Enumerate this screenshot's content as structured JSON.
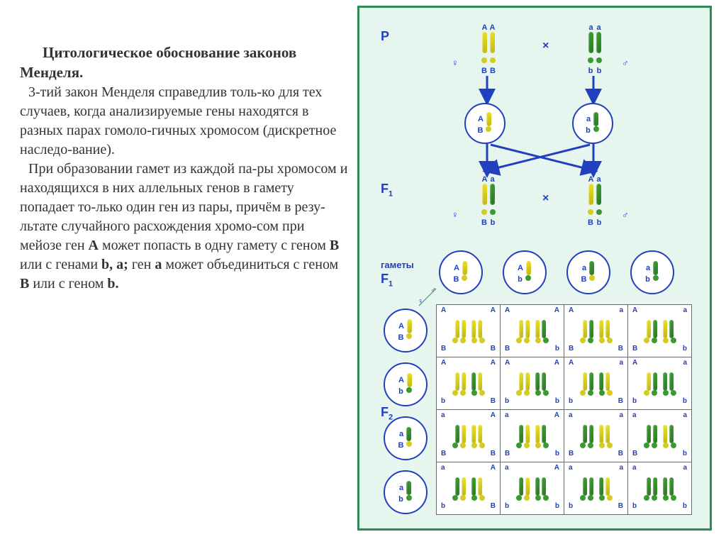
{
  "title": "Цитологическое обоснование законов  Менделя.",
  "para1": "3-тий закон Менделя справедлив толь-ко для тех случаев, когда анализируемые гены находятся в разных парах гомоло-гичных хромосом (дискретное наследо-вание).",
  "para2_a": "При образовании гамет из каждой па-ры хромосом и находящихся   в них аллельных генов в гамету попадает то-лько один ген из пары,  причём в резу-льтате случайного расхождения хромо-сом при мейозе ген ",
  "para2_b": " может попасть в одну гамету с геном ",
  "para2_c": "  или с генами  ",
  "para2_d": "   ген ",
  "para2_e": " может объединиться с геном ",
  "para2_f": " или с геном ",
  "geneA": "A",
  "geneB": "B",
  "geneb": "b,",
  "genea": "a;",
  "genea2": "a",
  "geneB2": "B",
  "geneb2": "b.",
  "labels": {
    "P": "P",
    "F1": "F",
    "F2": "F",
    "gametes": "гаметы",
    "cross": "×"
  },
  "colors": {
    "frame": "#2e8b57",
    "bg": "#e6f5ee",
    "blue": "#2040c0",
    "yellow": "#d6cc20",
    "green": "#3a9a30"
  },
  "parent_female": {
    "a1": "A",
    "a2": "A",
    "b1": "B",
    "b2": "B",
    "c1": "y",
    "c2": "y",
    "d1": "y",
    "d2": "y"
  },
  "parent_male": {
    "a1": "a",
    "a2": "a",
    "b1": "b",
    "b2": "b",
    "c1": "g",
    "c2": "g",
    "d1": "g",
    "d2": "g"
  },
  "gamete_P_f": {
    "a": "A",
    "b": "B",
    "c": "y",
    "d": "y"
  },
  "gamete_P_m": {
    "a": "a",
    "b": "b",
    "c": "g",
    "d": "g"
  },
  "f1_female": {
    "a1": "A",
    "a2": "a",
    "b1": "B",
    "b2": "b",
    "c1": "y",
    "c2": "g",
    "d1": "y",
    "d2": "g"
  },
  "f1_male": {
    "a1": "A",
    "a2": "a",
    "b1": "B",
    "b2": "b",
    "c1": "y",
    "c2": "g",
    "d1": "y",
    "d2": "g"
  },
  "gametes_f1": [
    {
      "a": "A",
      "b": "B",
      "c": "y",
      "d": "y"
    },
    {
      "a": "A",
      "b": "b",
      "c": "y",
      "d": "g"
    },
    {
      "a": "a",
      "b": "B",
      "c": "g",
      "d": "y"
    },
    {
      "a": "a",
      "b": "b",
      "c": "g",
      "d": "g"
    }
  ],
  "punnett_rows": [
    [
      {
        "a1": "A",
        "a2": "A",
        "b1": "B",
        "b2": "B",
        "c": [
          "y",
          "y",
          "y",
          "y"
        ]
      },
      {
        "a1": "A",
        "a2": "A",
        "b1": "B",
        "b2": "b",
        "c": [
          "y",
          "y",
          "y",
          "g"
        ]
      },
      {
        "a1": "A",
        "a2": "a",
        "b1": "B",
        "b2": "B",
        "c": [
          "y",
          "g",
          "y",
          "y"
        ]
      },
      {
        "a1": "A",
        "a2": "a",
        "b1": "B",
        "b2": "b",
        "c": [
          "y",
          "g",
          "y",
          "g"
        ]
      }
    ],
    [
      {
        "a1": "A",
        "a2": "A",
        "b1": "b",
        "b2": "B",
        "c": [
          "y",
          "y",
          "g",
          "y"
        ]
      },
      {
        "a1": "A",
        "a2": "A",
        "b1": "b",
        "b2": "b",
        "c": [
          "y",
          "y",
          "g",
          "g"
        ]
      },
      {
        "a1": "A",
        "a2": "a",
        "b1": "b",
        "b2": "B",
        "c": [
          "y",
          "g",
          "g",
          "y"
        ]
      },
      {
        "a1": "A",
        "a2": "a",
        "b1": "b",
        "b2": "b",
        "c": [
          "y",
          "g",
          "g",
          "g"
        ]
      }
    ],
    [
      {
        "a1": "a",
        "a2": "A",
        "b1": "B",
        "b2": "B",
        "c": [
          "g",
          "y",
          "y",
          "y"
        ]
      },
      {
        "a1": "a",
        "a2": "A",
        "b1": "B",
        "b2": "b",
        "c": [
          "g",
          "y",
          "y",
          "g"
        ]
      },
      {
        "a1": "a",
        "a2": "a",
        "b1": "B",
        "b2": "B",
        "c": [
          "g",
          "g",
          "y",
          "y"
        ]
      },
      {
        "a1": "a",
        "a2": "a",
        "b1": "B",
        "b2": "b",
        "c": [
          "g",
          "g",
          "y",
          "g"
        ]
      }
    ],
    [
      {
        "a1": "a",
        "a2": "A",
        "b1": "b",
        "b2": "B",
        "c": [
          "g",
          "y",
          "g",
          "y"
        ]
      },
      {
        "a1": "a",
        "a2": "A",
        "b1": "b",
        "b2": "b",
        "c": [
          "g",
          "y",
          "g",
          "g"
        ]
      },
      {
        "a1": "a",
        "a2": "a",
        "b1": "b",
        "b2": "B",
        "c": [
          "g",
          "g",
          "g",
          "y"
        ]
      },
      {
        "a1": "a",
        "a2": "a",
        "b1": "b",
        "b2": "b",
        "c": [
          "g",
          "g",
          "g",
          "g"
        ]
      }
    ]
  ]
}
